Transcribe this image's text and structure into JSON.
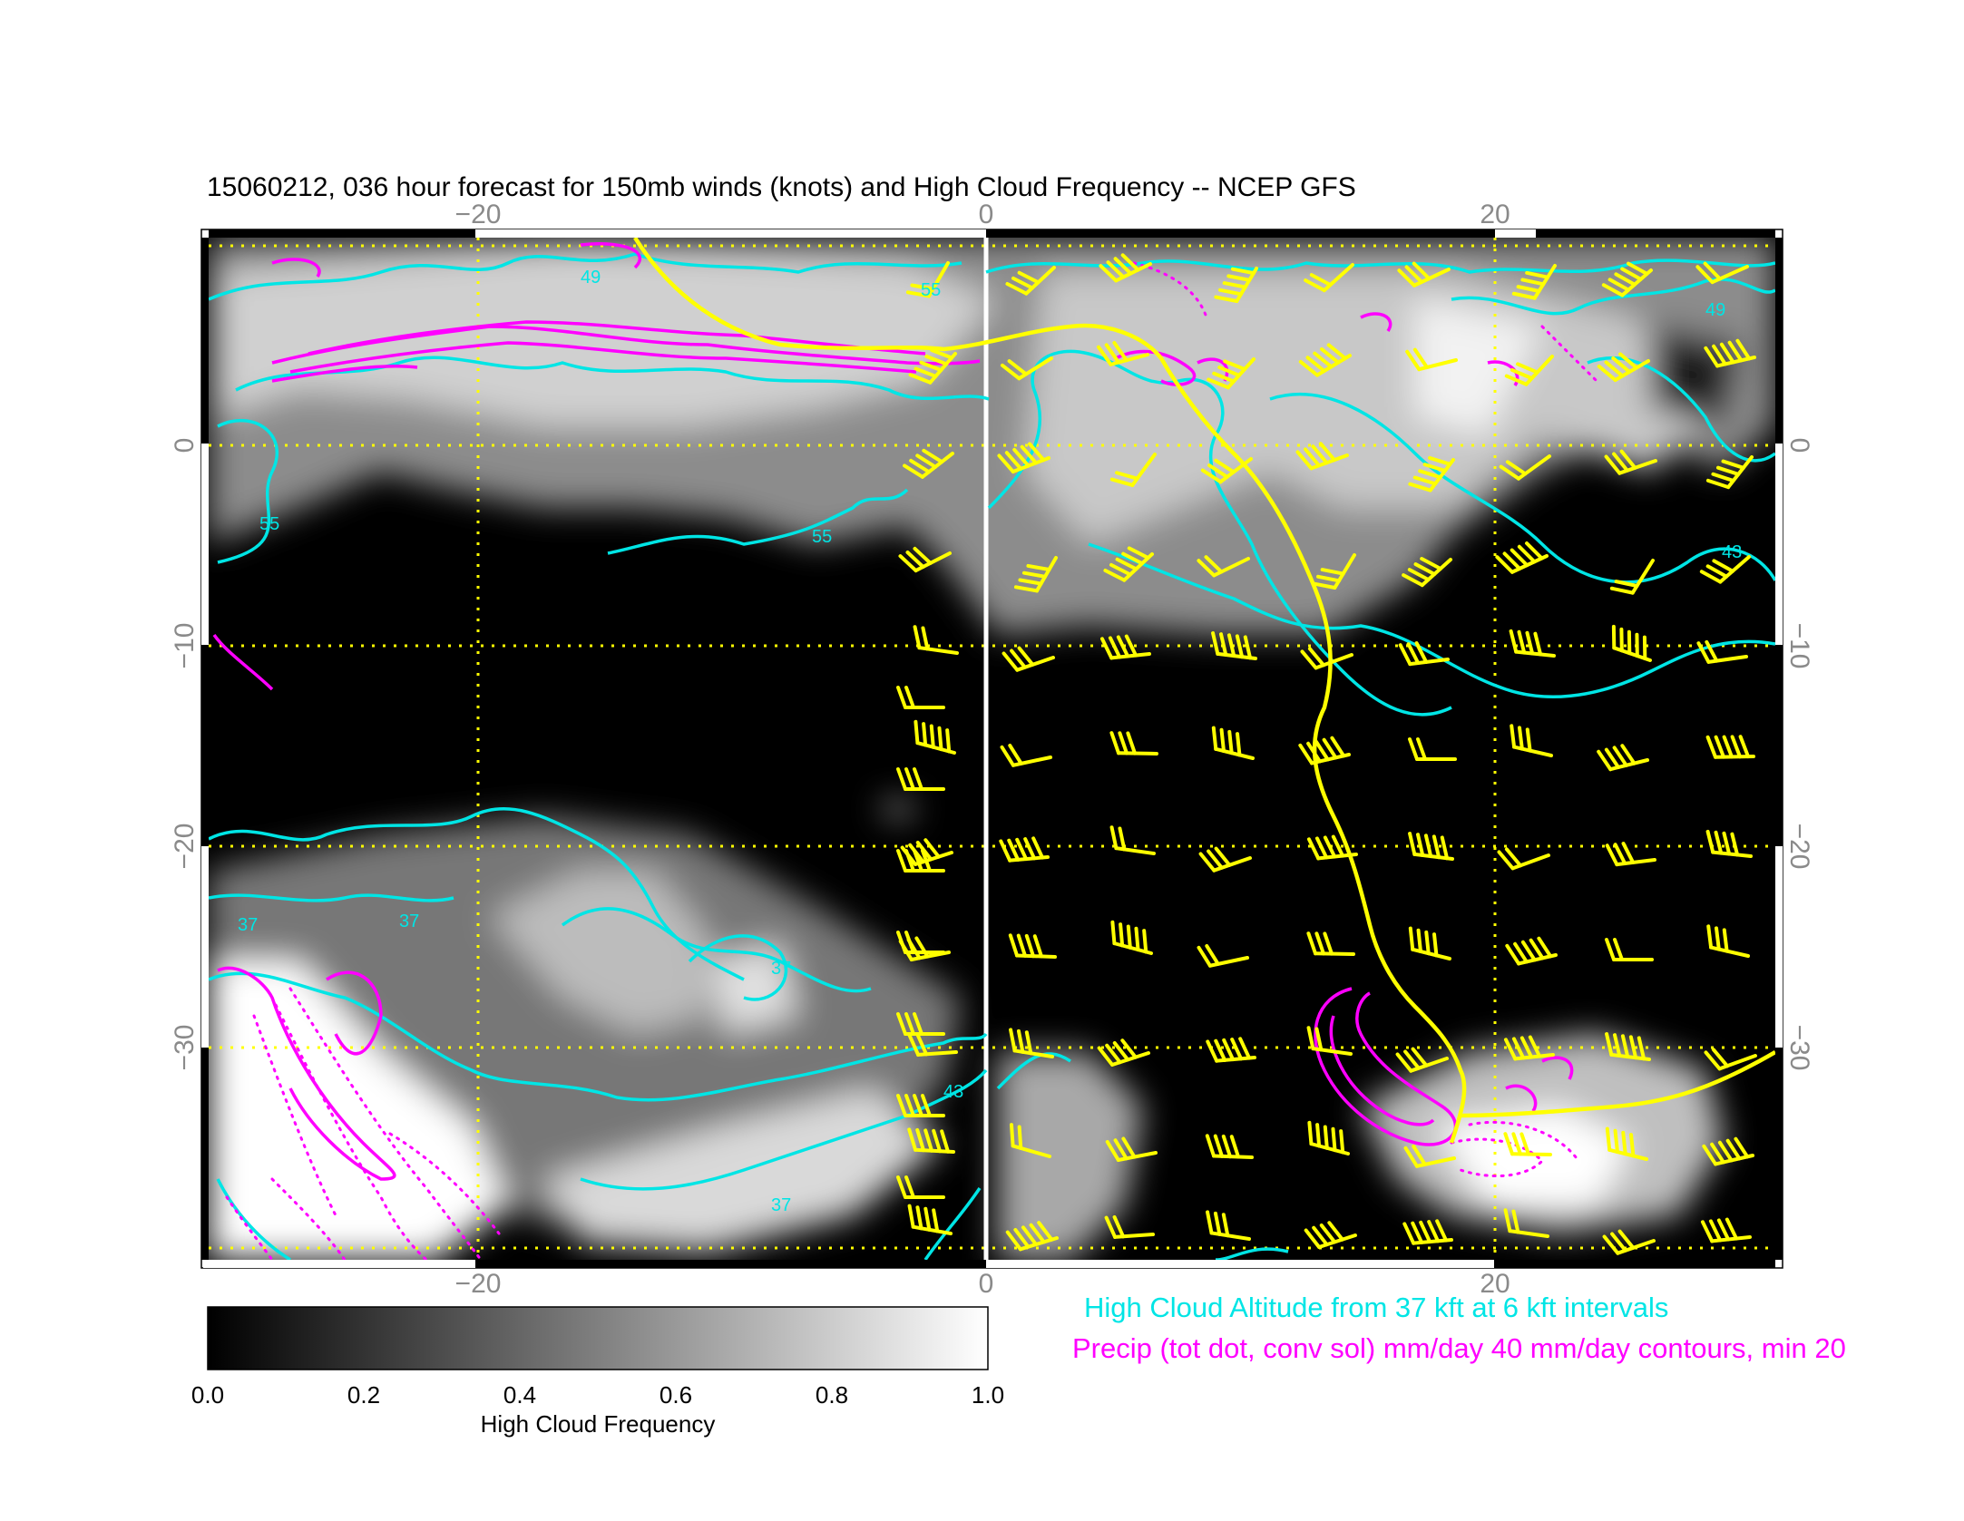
{
  "title": "15060212, 036 hour forecast for 150mb winds (knots) and High Cloud Frequency -- NCEP GFS",
  "map": {
    "x_ticks": [
      "−20",
      "0",
      "20"
    ],
    "x_tick_values": [
      -20,
      0,
      20
    ],
    "y_ticks": [
      "0",
      "−10",
      "−20",
      "−30"
    ],
    "y_tick_values": [
      0,
      -10,
      -20,
      -30
    ],
    "lon_range": [
      -30.5,
      31
    ],
    "lat_range": [
      -40.5,
      10.5
    ],
    "grid": "dotted yellow every 10 degrees",
    "colors": {
      "background": "#000000",
      "cloud_altitude_contours": "#00e5e5",
      "precip_contours": "#ff00ff",
      "wind_barbs": "#ffff00",
      "grid": "#ffff00",
      "meridian": "#ffffff"
    },
    "contour_labels": [
      "55",
      "55",
      "49",
      "37",
      "37",
      "37",
      "43",
      "37",
      "55",
      "49",
      "43"
    ]
  },
  "legend": {
    "cloud_text": "High Cloud Altitude from 37 kft at 6 kft intervals",
    "cloud_color": "#00e5e5",
    "precip_text": "Precip (tot dot, conv sol) mm/day 40 mm/day contours, min 20",
    "precip_color": "#ff00ff"
  },
  "colorbar": {
    "label": "High Cloud Frequency",
    "ticks": [
      "0.0",
      "0.2",
      "0.4",
      "0.6",
      "0.8",
      "1.0"
    ],
    "tick_values": [
      0.0,
      0.2,
      0.4,
      0.6,
      0.8,
      1.0
    ],
    "range": [
      0.0,
      1.0
    ],
    "colormap": "black to white"
  }
}
